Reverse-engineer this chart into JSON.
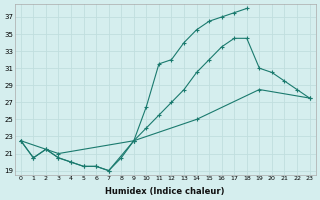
{
  "xlabel": "Humidex (Indice chaleur)",
  "ylabel": "",
  "bg_color": "#d5eeee",
  "line_color": "#1a7a6e",
  "grid_color": "#c0dede",
  "xlim": [
    -0.5,
    23.5
  ],
  "ylim": [
    18.5,
    38.5
  ],
  "xticks": [
    0,
    1,
    2,
    3,
    4,
    5,
    6,
    7,
    8,
    9,
    10,
    11,
    12,
    13,
    14,
    15,
    16,
    17,
    18,
    19,
    20,
    21,
    22,
    23
  ],
  "yticks": [
    19,
    21,
    23,
    25,
    27,
    29,
    31,
    33,
    35,
    37
  ],
  "curve1_x": [
    0,
    1,
    2,
    3,
    4,
    5,
    6,
    7,
    9,
    10,
    11,
    12,
    13,
    14,
    15,
    16,
    17,
    18
  ],
  "curve1_y": [
    22.5,
    20.5,
    21.5,
    20.5,
    20.0,
    19.5,
    19.5,
    19.0,
    22.5,
    26.5,
    31.5,
    32.0,
    34.0,
    35.5,
    36.5,
    37.0,
    37.5,
    38.0
  ],
  "curve2_x": [
    0,
    1,
    2,
    3,
    4,
    5,
    6,
    7,
    8,
    9,
    10,
    11,
    12,
    13,
    14,
    15,
    16,
    17,
    18,
    19,
    20,
    21,
    22,
    23
  ],
  "curve2_y": [
    22.5,
    20.5,
    21.5,
    20.5,
    20.0,
    19.5,
    19.5,
    19.0,
    20.5,
    22.5,
    24.0,
    25.5,
    27.0,
    28.5,
    30.5,
    32.0,
    33.5,
    34.5,
    34.5,
    31.0,
    30.5,
    29.5,
    28.5,
    27.5
  ],
  "curve3_x": [
    0,
    3,
    9,
    14,
    19,
    23
  ],
  "curve3_y": [
    22.5,
    21.0,
    22.5,
    25.0,
    28.5,
    27.5
  ]
}
